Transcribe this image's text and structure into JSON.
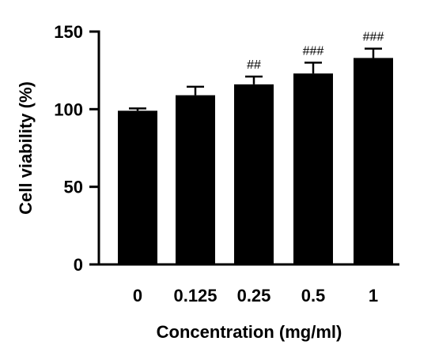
{
  "chart_data": {
    "type": "bar",
    "title": "",
    "xlabel": "Concentration (mg/ml)",
    "ylabel": "Cell viability (%)",
    "ylim": [
      0,
      150
    ],
    "yticks": [
      0,
      50,
      100,
      150
    ],
    "categories": [
      "0",
      "0.125",
      "0.25",
      "0.5",
      "1"
    ],
    "values": [
      99,
      109,
      116,
      123,
      133
    ],
    "errors": [
      1.5,
      5.5,
      5,
      7,
      6
    ],
    "annotations": [
      "",
      "",
      "##",
      "###",
      "###"
    ],
    "bar_color": "#000000",
    "grid": false,
    "legend": "none"
  }
}
